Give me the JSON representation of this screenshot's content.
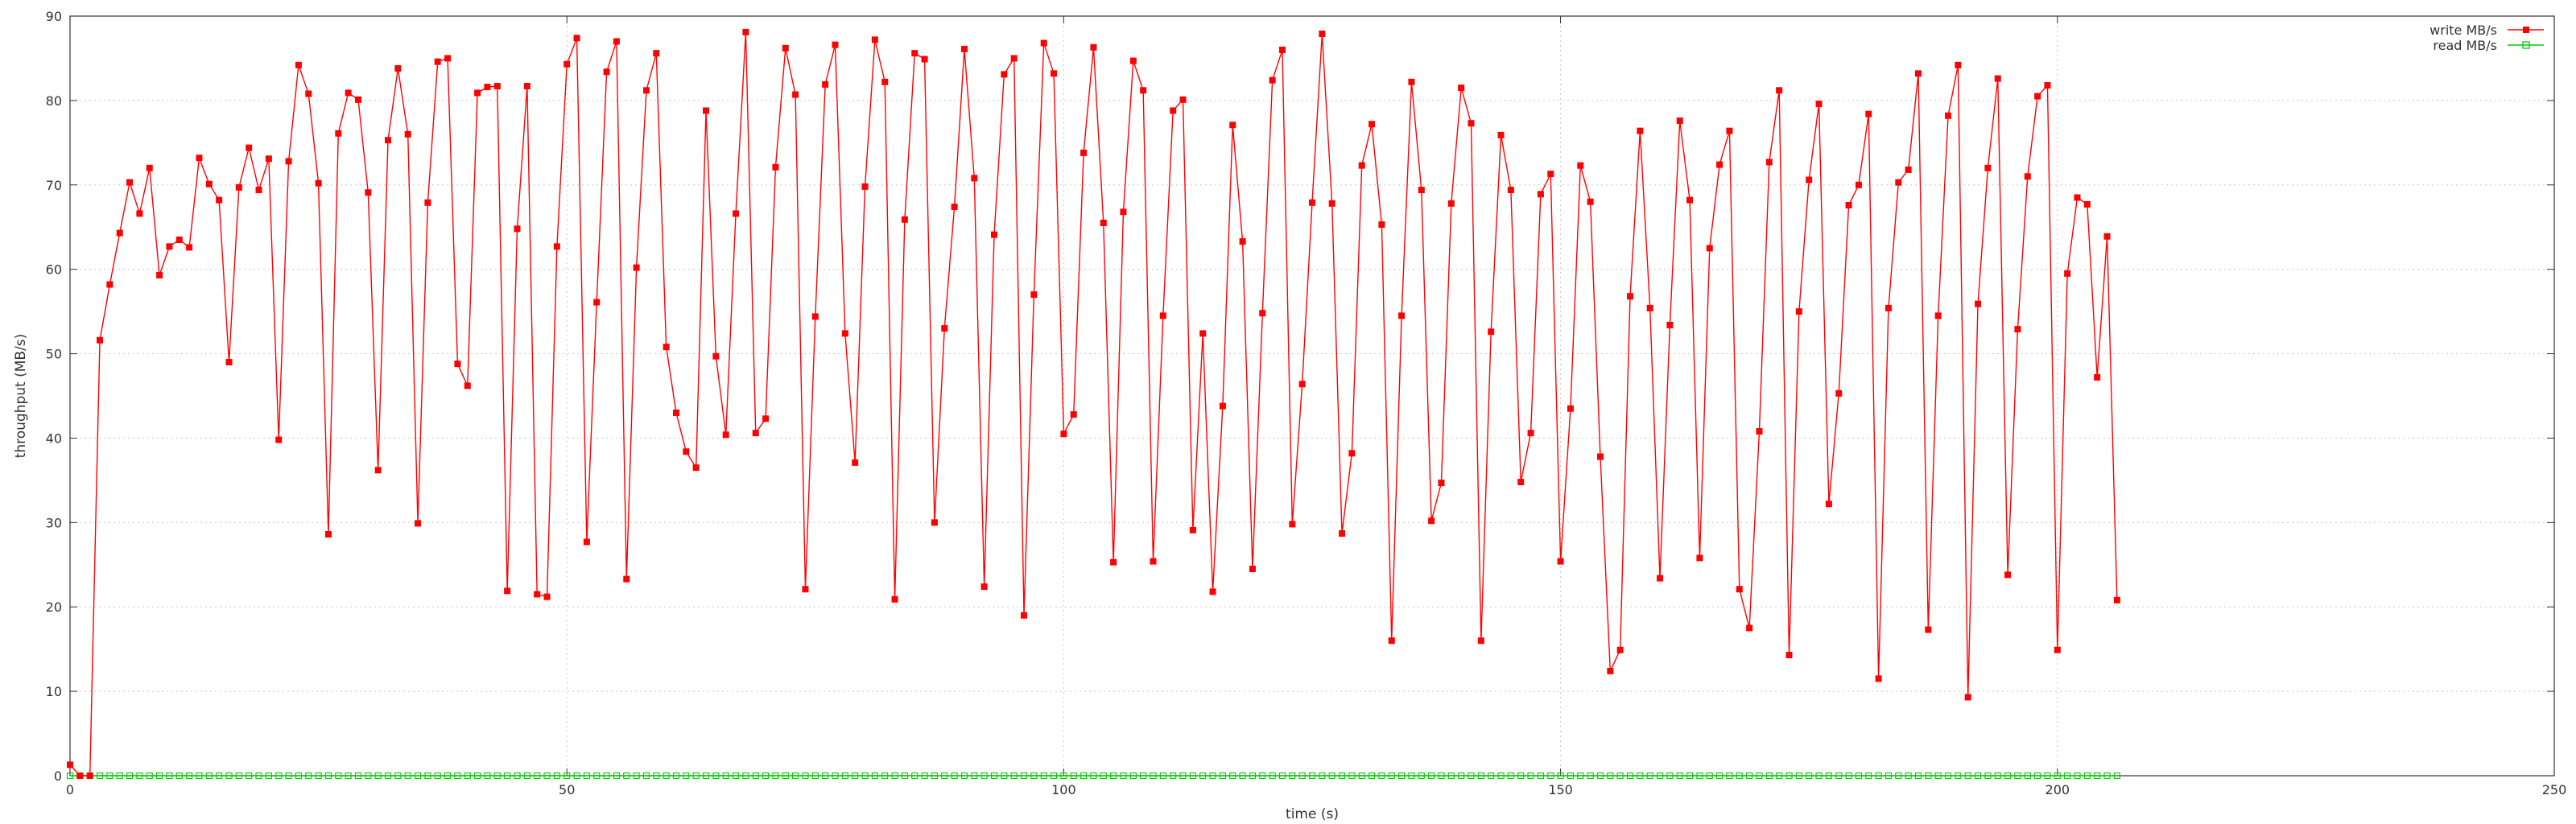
{
  "chart_data": {
    "type": "line",
    "title": "",
    "xlabel": "time (s)",
    "ylabel": "throughput (MB/s)",
    "xlim": [
      0,
      250
    ],
    "ylim": [
      0,
      90
    ],
    "xticks": [
      0,
      50,
      100,
      150,
      200,
      250
    ],
    "yticks": [
      0,
      10,
      20,
      30,
      40,
      50,
      60,
      70,
      80,
      90
    ],
    "grid": true,
    "legend_position": "top-right",
    "series": [
      {
        "name": "write MB/s",
        "color": "#ff0000",
        "marker": "filled-square",
        "x": [
          0,
          1,
          2,
          3,
          4,
          5,
          6,
          7,
          8,
          9,
          10,
          11,
          12,
          13,
          14,
          15,
          16,
          17,
          18,
          19,
          20,
          21,
          22,
          23,
          24,
          25,
          26,
          27,
          28,
          29,
          30,
          31,
          32,
          33,
          34,
          35,
          36,
          37,
          38,
          39,
          40,
          41,
          42,
          43,
          44,
          45,
          46,
          47,
          48,
          49,
          50,
          51,
          52,
          53,
          54,
          55,
          56,
          57,
          58,
          59,
          60,
          61,
          62,
          63,
          64,
          65,
          66,
          67,
          68,
          69,
          70,
          71,
          72,
          73,
          74,
          75,
          76,
          77,
          78,
          79,
          80,
          81,
          82,
          83,
          84,
          85,
          86,
          87,
          88,
          89,
          90,
          91,
          92,
          93,
          94,
          95,
          96,
          97,
          98,
          99,
          100,
          101,
          102,
          103,
          104,
          105,
          106,
          107,
          108,
          109,
          110,
          111,
          112,
          113,
          114,
          115,
          116,
          117,
          118,
          119,
          120,
          121,
          122,
          123,
          124,
          125,
          126,
          127,
          128,
          129,
          130,
          131,
          132,
          133,
          134,
          135,
          136,
          137,
          138,
          139,
          140,
          141,
          142,
          143,
          144,
          145,
          146,
          147,
          148,
          149,
          150,
          151,
          152,
          153,
          154,
          155,
          156,
          157,
          158,
          159,
          160,
          161,
          162,
          163,
          164,
          165,
          166,
          167,
          168,
          169,
          170,
          171,
          172,
          173,
          174,
          175,
          176,
          177,
          178,
          179,
          180,
          181,
          182,
          183,
          184,
          185,
          186,
          187,
          188,
          189,
          190,
          191,
          192,
          193,
          194,
          195,
          196,
          197,
          198,
          199,
          200,
          201,
          202,
          203,
          204,
          205,
          206
        ],
        "values": [
          1.3,
          0,
          0,
          51.6,
          58.2,
          64.3,
          70.3,
          66.6,
          72,
          59.3,
          62.7,
          63.5,
          62.6,
          73.2,
          70.1,
          68.2,
          49,
          69.7,
          74.4,
          69.4,
          73.1,
          39.8,
          72.8,
          84.2,
          80.8,
          70.2,
          28.6,
          76.1,
          80.9,
          80.1,
          69.1,
          36.2,
          75.3,
          83.8,
          76,
          29.9,
          67.9,
          84.6,
          85,
          48.8,
          46.2,
          80.9,
          81.6,
          81.7,
          21.9,
          64.8,
          81.7,
          21.5,
          21.2,
          62.7,
          84.3,
          87.4,
          27.7,
          56.1,
          83.4,
          87,
          23.3,
          60.2,
          81.2,
          85.6,
          50.8,
          43,
          38.4,
          36.5,
          78.8,
          49.7,
          40.4,
          66.6,
          88.1,
          40.6,
          42.3,
          72.1,
          86.2,
          80.7,
          22.1,
          54.4,
          81.9,
          86.6,
          52.4,
          37.1,
          69.8,
          87.2,
          82.2,
          20.9,
          65.9,
          85.6,
          84.9,
          30,
          53,
          67.4,
          86.1,
          70.8,
          22.4,
          64.1,
          83.1,
          85,
          19,
          57,
          86.8,
          83.2,
          40.5,
          42.8,
          73.8,
          86.3,
          65.5,
          25.3,
          66.8,
          84.7,
          81.2,
          25.4,
          54.5,
          78.8,
          80.1,
          29.1,
          52.4,
          21.8,
          43.8,
          77.1,
          63.3,
          24.5,
          54.8,
          82.4,
          86,
          29.8,
          46.4,
          67.9,
          87.9,
          67.8,
          28.7,
          38.2,
          72.3,
          77.2,
          65.3,
          16,
          54.5,
          82.2,
          69.4,
          30.2,
          34.7,
          67.8,
          81.5,
          77.3,
          16,
          52.6,
          75.9,
          69.4,
          34.8,
          40.6,
          68.9,
          71.3,
          25.4,
          43.5,
          72.3,
          68,
          37.8,
          12.4,
          14.9,
          56.8,
          76.4,
          55.4,
          23.4,
          53.4,
          77.6,
          68.2,
          25.8,
          62.5,
          72.4,
          76.4,
          22.1,
          17.5,
          40.8,
          72.7,
          81.2,
          14.3,
          55,
          70.6,
          79.6,
          32.2,
          45.3,
          67.6,
          70,
          78.4,
          11.5,
          55.4,
          70.3,
          71.8,
          83.2,
          17.3,
          54.5,
          78.2,
          84.2,
          9.3,
          55.9,
          72,
          82.6,
          23.8,
          52.9,
          71,
          80.5,
          81.8,
          14.9,
          59.5,
          68.5,
          67.7,
          47.2,
          63.9,
          20.8
        ]
      },
      {
        "name": "read MB/s",
        "color": "#00cc00",
        "marker": "open-square",
        "x_start": 0,
        "x_end": 206,
        "x_step": 1,
        "values_constant": 0
      }
    ]
  }
}
